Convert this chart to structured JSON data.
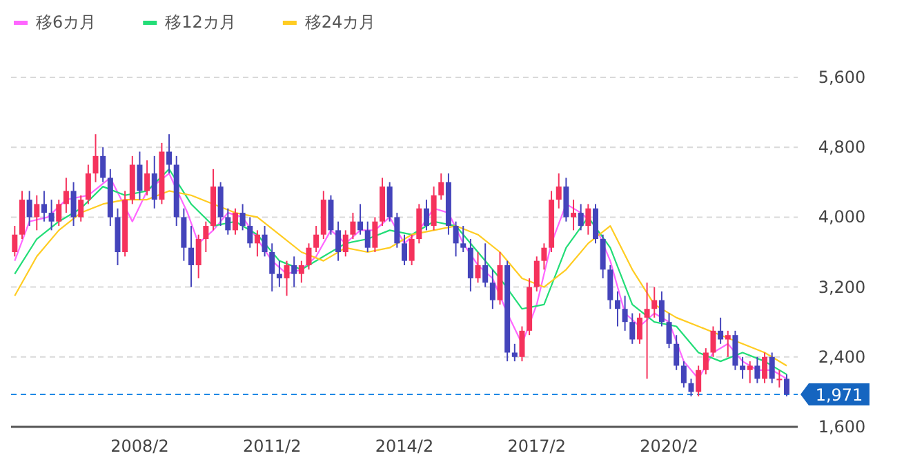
{
  "chart_data": {
    "type": "candlestick",
    "legend": "top left",
    "grid": "y",
    "xlim": [
      "2005-03",
      "2023-01"
    ],
    "ylim": [
      1600,
      5600
    ],
    "xticks": [
      {
        "value": "2008-02",
        "label": "2008/2"
      },
      {
        "value": "2011-02",
        "label": "2011/2"
      },
      {
        "value": "2014-02",
        "label": "2014/2"
      },
      {
        "value": "2017-02",
        "label": "2017/2"
      },
      {
        "value": "2020-02",
        "label": "2020/2"
      }
    ],
    "yticks": [
      {
        "value": 1600,
        "label": "1,600"
      },
      {
        "value": 2400,
        "label": "2,400"
      },
      {
        "value": 3200,
        "label": "3,200"
      },
      {
        "value": 4000,
        "label": "4,000"
      },
      {
        "value": 4800,
        "label": "4,800"
      },
      {
        "value": 5600,
        "label": "5,600"
      }
    ],
    "ref_lines": [
      {
        "axis": "y",
        "value": 1971,
        "label": "1,971",
        "color": "#1e88e5",
        "line_style": "dashed"
      }
    ],
    "x": [
      "2005-04",
      "2005-06",
      "2005-08",
      "2005-10",
      "2005-12",
      "2006-02",
      "2006-04",
      "2006-06",
      "2006-08",
      "2006-10",
      "2006-12",
      "2007-02",
      "2007-04",
      "2007-06",
      "2007-08",
      "2007-10",
      "2007-12",
      "2008-02",
      "2008-04",
      "2008-06",
      "2008-08",
      "2008-10",
      "2008-12",
      "2009-02",
      "2009-04",
      "2009-06",
      "2009-08",
      "2009-10",
      "2009-12",
      "2010-02",
      "2010-04",
      "2010-06",
      "2010-08",
      "2010-10",
      "2010-12",
      "2011-02",
      "2011-04",
      "2011-06",
      "2011-08",
      "2011-10",
      "2011-12",
      "2012-02",
      "2012-04",
      "2012-06",
      "2012-08",
      "2012-10",
      "2012-12",
      "2013-02",
      "2013-04",
      "2013-06",
      "2013-08",
      "2013-10",
      "2013-12",
      "2014-02",
      "2014-04",
      "2014-06",
      "2014-08",
      "2014-10",
      "2014-12",
      "2015-02",
      "2015-04",
      "2015-06",
      "2015-08",
      "2015-10",
      "2015-12",
      "2016-02",
      "2016-04",
      "2016-06",
      "2016-08",
      "2016-10",
      "2016-12",
      "2017-02",
      "2017-04",
      "2017-06",
      "2017-08",
      "2017-10",
      "2017-12",
      "2018-02",
      "2018-04",
      "2018-06",
      "2018-08",
      "2018-10",
      "2018-12",
      "2019-02",
      "2019-04",
      "2019-06",
      "2019-08",
      "2019-10",
      "2019-12",
      "2020-02",
      "2020-04",
      "2020-06",
      "2020-08",
      "2020-10",
      "2020-12",
      "2021-02",
      "2021-04",
      "2021-06",
      "2021-08",
      "2021-10",
      "2021-12",
      "2022-02",
      "2022-04",
      "2022-06",
      "2022-08",
      "2022-10"
    ],
    "ohlc": [
      [
        3600,
        3900,
        3550,
        3800
      ],
      [
        3800,
        4300,
        3750,
        4200
      ],
      [
        4200,
        4300,
        3900,
        4000
      ],
      [
        4000,
        4250,
        3850,
        4150
      ],
      [
        4150,
        4300,
        3950,
        4050
      ],
      [
        4050,
        4200,
        3850,
        3950
      ],
      [
        3950,
        4200,
        3900,
        4150
      ],
      [
        4150,
        4450,
        4050,
        4300
      ],
      [
        4300,
        4400,
        3900,
        4000
      ],
      [
        4000,
        4250,
        3950,
        4200
      ],
      [
        4200,
        4600,
        4150,
        4500
      ],
      [
        4500,
        4950,
        4400,
        4700
      ],
      [
        4700,
        4800,
        4400,
        4450
      ],
      [
        4450,
        4550,
        3900,
        4000
      ],
      [
        4000,
        4100,
        3450,
        3600
      ],
      [
        3600,
        4300,
        3550,
        4200
      ],
      [
        4200,
        4700,
        4150,
        4600
      ],
      [
        4600,
        4750,
        4200,
        4300
      ],
      [
        4300,
        4650,
        4250,
        4500
      ],
      [
        4500,
        4700,
        4100,
        4200
      ],
      [
        4200,
        4850,
        4150,
        4750
      ],
      [
        4750,
        4950,
        4500,
        4600
      ],
      [
        4600,
        4700,
        3900,
        4000
      ],
      [
        4000,
        4100,
        3500,
        3650
      ],
      [
        3650,
        3900,
        3200,
        3450
      ],
      [
        3450,
        3800,
        3300,
        3750
      ],
      [
        3750,
        3950,
        3600,
        3900
      ],
      [
        3900,
        4550,
        3850,
        4350
      ],
      [
        4350,
        4400,
        3900,
        4000
      ],
      [
        4000,
        4100,
        3800,
        3850
      ],
      [
        3850,
        4100,
        3800,
        4050
      ],
      [
        4050,
        4150,
        3850,
        3900
      ],
      [
        3900,
        4000,
        3650,
        3700
      ],
      [
        3700,
        3850,
        3550,
        3800
      ],
      [
        3800,
        3900,
        3550,
        3600
      ],
      [
        3600,
        3700,
        3150,
        3350
      ],
      [
        3350,
        3500,
        3200,
        3300
      ],
      [
        3300,
        3500,
        3100,
        3450
      ],
      [
        3450,
        3550,
        3200,
        3350
      ],
      [
        3350,
        3500,
        3250,
        3450
      ],
      [
        3450,
        3700,
        3400,
        3650
      ],
      [
        3650,
        3900,
        3600,
        3800
      ],
      [
        3800,
        4300,
        3750,
        4200
      ],
      [
        4200,
        4250,
        3800,
        3850
      ],
      [
        3850,
        3950,
        3500,
        3600
      ],
      [
        3600,
        3850,
        3550,
        3800
      ],
      [
        3800,
        4050,
        3750,
        3950
      ],
      [
        3950,
        4150,
        3800,
        3850
      ],
      [
        3850,
        3950,
        3600,
        3650
      ],
      [
        3650,
        4000,
        3600,
        3950
      ],
      [
        3950,
        4450,
        3900,
        4350
      ],
      [
        4350,
        4400,
        3950,
        4000
      ],
      [
        4000,
        4050,
        3650,
        3700
      ],
      [
        3700,
        3800,
        3450,
        3500
      ],
      [
        3500,
        3800,
        3450,
        3750
      ],
      [
        3750,
        4150,
        3700,
        4100
      ],
      [
        4100,
        4200,
        3850,
        3900
      ],
      [
        3900,
        4350,
        3850,
        4250
      ],
      [
        4250,
        4500,
        4200,
        4400
      ],
      [
        4400,
        4500,
        3800,
        3900
      ],
      [
        3900,
        3950,
        3550,
        3700
      ],
      [
        3700,
        3900,
        3600,
        3650
      ],
      [
        3650,
        3750,
        3150,
        3300
      ],
      [
        3300,
        3600,
        3250,
        3450
      ],
      [
        3450,
        3700,
        3200,
        3250
      ],
      [
        3250,
        3400,
        2950,
        3050
      ],
      [
        3050,
        3600,
        3000,
        3450
      ],
      [
        3450,
        3500,
        2350,
        2450
      ],
      [
        2450,
        2550,
        2350,
        2400
      ],
      [
        2400,
        2750,
        2350,
        2700
      ],
      [
        2700,
        3300,
        2650,
        3200
      ],
      [
        3200,
        3550,
        3150,
        3500
      ],
      [
        3500,
        3700,
        3400,
        3650
      ],
      [
        3650,
        4300,
        3600,
        4200
      ],
      [
        4200,
        4500,
        4100,
        4350
      ],
      [
        4350,
        4450,
        3950,
        4000
      ],
      [
        4000,
        4200,
        3850,
        4050
      ],
      [
        4050,
        4150,
        3850,
        3900
      ],
      [
        3900,
        4150,
        3800,
        4100
      ],
      [
        4100,
        4150,
        3700,
        3750
      ],
      [
        3750,
        3800,
        3300,
        3400
      ],
      [
        3400,
        3450,
        2950,
        3050
      ],
      [
        3050,
        3150,
        2750,
        2950
      ],
      [
        2950,
        3100,
        2700,
        2800
      ],
      [
        2800,
        2900,
        2550,
        2600
      ],
      [
        2600,
        2900,
        2550,
        2850
      ],
      [
        2850,
        3250,
        2150,
        2950
      ],
      [
        2950,
        3200,
        2850,
        3050
      ],
      [
        3050,
        3150,
        2750,
        2800
      ],
      [
        2800,
        2900,
        2500,
        2550
      ],
      [
        2550,
        2650,
        2250,
        2300
      ],
      [
        2300,
        2350,
        2050,
        2100
      ],
      [
        2100,
        2150,
        1950,
        2000
      ],
      [
        2000,
        2300,
        1950,
        2250
      ],
      [
        2250,
        2500,
        2200,
        2450
      ],
      [
        2450,
        2750,
        2400,
        2700
      ],
      [
        2700,
        2850,
        2550,
        2600
      ],
      [
        2600,
        2700,
        2400,
        2650
      ],
      [
        2650,
        2700,
        2250,
        2300
      ],
      [
        2300,
        2400,
        2150,
        2250
      ],
      [
        2250,
        2350,
        2100,
        2300
      ],
      [
        2300,
        2400,
        2100,
        2150
      ],
      [
        2150,
        2450,
        2100,
        2400
      ],
      [
        2400,
        2450,
        2100,
        2150
      ],
      [
        2150,
        2250,
        2050,
        2150
      ],
      [
        2150,
        2200,
        1950,
        1971
      ]
    ],
    "series": [
      {
        "name": "移6カ月",
        "type": "line",
        "color": "#ff66ff",
        "x": [
          "2005-04",
          "2005-08",
          "2006-01",
          "2006-06",
          "2006-12",
          "2007-06",
          "2007-12",
          "2008-04",
          "2008-10",
          "2009-03",
          "2009-06",
          "2009-10",
          "2010-02",
          "2010-06",
          "2010-10",
          "2011-02",
          "2011-06",
          "2011-10",
          "2012-02",
          "2012-06",
          "2012-10",
          "2013-02",
          "2013-06",
          "2013-10",
          "2014-02",
          "2014-06",
          "2014-10",
          "2015-02",
          "2015-06",
          "2015-10",
          "2016-02",
          "2016-06",
          "2016-10",
          "2017-02",
          "2017-06",
          "2017-10",
          "2018-02",
          "2018-06",
          "2018-10",
          "2019-02",
          "2019-06",
          "2019-10",
          "2020-02",
          "2020-06",
          "2020-10",
          "2021-02",
          "2021-06",
          "2021-10",
          "2022-02",
          "2022-06",
          "2022-10"
        ],
        "values": [
          3500,
          3950,
          4000,
          4200,
          4250,
          4450,
          3950,
          4300,
          4500,
          4050,
          3700,
          3850,
          4050,
          4000,
          3750,
          3500,
          3350,
          3400,
          3550,
          3850,
          3700,
          3850,
          3850,
          4000,
          3700,
          3850,
          4100,
          4050,
          3700,
          3450,
          3300,
          2900,
          2550,
          3000,
          3700,
          4150,
          4050,
          3900,
          3500,
          2900,
          2750,
          2900,
          2800,
          2350,
          2150,
          2450,
          2550,
          2350,
          2250,
          2250,
          2150
        ]
      },
      {
        "name": "移12カ月",
        "type": "line",
        "color": "#22dd77",
        "x": [
          "2005-04",
          "2005-10",
          "2006-04",
          "2006-10",
          "2007-04",
          "2007-10",
          "2008-04",
          "2008-10",
          "2009-04",
          "2009-10",
          "2010-04",
          "2010-10",
          "2011-04",
          "2011-10",
          "2012-04",
          "2012-10",
          "2013-04",
          "2013-10",
          "2014-04",
          "2014-10",
          "2015-04",
          "2015-10",
          "2016-04",
          "2016-10",
          "2017-04",
          "2017-10",
          "2018-04",
          "2018-10",
          "2019-04",
          "2019-10",
          "2020-04",
          "2020-10",
          "2021-04",
          "2021-10",
          "2022-04",
          "2022-10"
        ],
        "values": [
          3350,
          3750,
          3950,
          4100,
          4350,
          4250,
          4300,
          4550,
          4150,
          3900,
          3950,
          3800,
          3500,
          3400,
          3550,
          3700,
          3750,
          3850,
          3800,
          3950,
          3900,
          3600,
          3300,
          2950,
          3000,
          3650,
          4000,
          3650,
          3000,
          2800,
          2750,
          2450,
          2350,
          2450,
          2350,
          2200
        ]
      },
      {
        "name": "移24カ月",
        "type": "line",
        "color": "#ffcc22",
        "x": [
          "2005-04",
          "2005-10",
          "2006-04",
          "2006-10",
          "2007-04",
          "2007-10",
          "2008-04",
          "2008-10",
          "2009-04",
          "2009-10",
          "2010-04",
          "2010-10",
          "2011-04",
          "2011-10",
          "2012-04",
          "2012-10",
          "2013-04",
          "2013-10",
          "2014-04",
          "2014-10",
          "2015-04",
          "2015-10",
          "2016-04",
          "2016-10",
          "2017-04",
          "2017-10",
          "2018-04",
          "2018-10",
          "2019-04",
          "2019-10",
          "2020-04",
          "2020-10",
          "2021-04",
          "2021-10",
          "2022-04",
          "2022-10"
        ],
        "values": [
          3100,
          3550,
          3850,
          4050,
          4150,
          4200,
          4200,
          4300,
          4250,
          4150,
          4050,
          4000,
          3800,
          3600,
          3500,
          3650,
          3600,
          3650,
          3800,
          3850,
          3900,
          3800,
          3600,
          3300,
          3200,
          3400,
          3700,
          3900,
          3400,
          3000,
          2850,
          2750,
          2650,
          2550,
          2450,
          2300
        ]
      }
    ]
  }
}
